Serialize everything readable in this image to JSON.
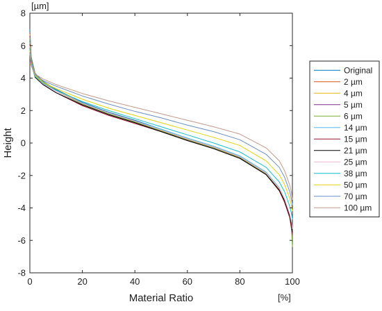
{
  "chart_data": {
    "type": "line",
    "title": "",
    "xlabel": "Material Ratio",
    "ylabel": "Height",
    "x_unit_label": "[%]",
    "y_unit_label": "[µm]",
    "xlim": [
      0,
      100
    ],
    "ylim": [
      -8,
      8
    ],
    "x_ticks": [
      0,
      20,
      40,
      60,
      80,
      100
    ],
    "y_ticks": [
      -8,
      -6,
      -4,
      -2,
      0,
      2,
      4,
      6,
      8
    ],
    "grid": false,
    "legend_position": "right",
    "x": [
      0,
      0.5,
      2,
      5,
      10,
      20,
      30,
      40,
      50,
      60,
      70,
      80,
      90,
      95,
      97,
      99,
      99.7,
      100
    ],
    "series": [
      {
        "name": "Original",
        "color": "#0072BD",
        "values": [
          7.0,
          5.3,
          4.3,
          3.8,
          3.3,
          2.5,
          1.9,
          1.4,
          0.85,
          0.3,
          -0.2,
          -0.8,
          -1.8,
          -2.8,
          -3.5,
          -4.5,
          -5.2,
          -6.0
        ]
      },
      {
        "name": "2 µm",
        "color": "#D95319",
        "values": [
          6.8,
          5.2,
          4.25,
          3.75,
          3.25,
          2.45,
          1.85,
          1.35,
          0.8,
          0.25,
          -0.25,
          -0.85,
          -1.85,
          -2.85,
          -3.55,
          -4.55,
          -5.3,
          -6.0
        ]
      },
      {
        "name": "4 µm",
        "color": "#EDB120",
        "values": [
          6.7,
          5.2,
          4.25,
          3.75,
          3.25,
          2.45,
          1.85,
          1.35,
          0.8,
          0.25,
          -0.25,
          -0.85,
          -1.85,
          -2.85,
          -3.55,
          -4.55,
          -5.25,
          -5.9
        ]
      },
      {
        "name": "5 µm",
        "color": "#7E2F8E",
        "values": [
          6.6,
          5.15,
          4.2,
          3.7,
          3.2,
          2.4,
          1.8,
          1.3,
          0.75,
          0.2,
          -0.3,
          -0.9,
          -1.9,
          -2.9,
          -3.6,
          -4.6,
          -5.3,
          -5.9
        ]
      },
      {
        "name": "6 µm",
        "color": "#77AC30",
        "values": [
          6.5,
          5.1,
          4.2,
          3.7,
          3.2,
          2.4,
          1.8,
          1.3,
          0.75,
          0.2,
          -0.3,
          -0.9,
          -1.9,
          -2.9,
          -3.6,
          -4.6,
          -5.4,
          -6.4
        ]
      },
      {
        "name": "14 µm",
        "color": "#4DBEEE",
        "values": [
          6.2,
          5.0,
          4.15,
          3.65,
          3.2,
          2.45,
          1.85,
          1.35,
          0.85,
          0.3,
          -0.2,
          -0.8,
          -1.8,
          -2.75,
          -3.45,
          -4.4,
          -5.0,
          -5.5
        ]
      },
      {
        "name": "15 µm",
        "color": "#A2142F",
        "values": [
          6.1,
          4.9,
          4.1,
          3.6,
          3.1,
          2.3,
          1.7,
          1.2,
          0.7,
          0.15,
          -0.35,
          -0.95,
          -1.95,
          -2.95,
          -3.65,
          -4.6,
          -5.3,
          -5.6
        ]
      },
      {
        "name": "21 µm",
        "color": "#000000",
        "values": [
          6.0,
          4.9,
          4.05,
          3.6,
          3.1,
          2.35,
          1.75,
          1.25,
          0.7,
          0.15,
          -0.35,
          -0.95,
          -1.95,
          -2.9,
          -3.55,
          -4.5,
          -5.1,
          -5.5
        ]
      },
      {
        "name": "25 µm",
        "color": "#F7B6D2",
        "values": [
          6.0,
          4.9,
          4.1,
          3.65,
          3.2,
          2.45,
          1.85,
          1.35,
          0.8,
          0.25,
          -0.25,
          -0.85,
          -1.85,
          -2.8,
          -3.45,
          -4.4,
          -4.9,
          -5.3
        ]
      },
      {
        "name": "38 µm",
        "color": "#17BECF",
        "values": [
          5.8,
          4.8,
          4.1,
          3.7,
          3.25,
          2.55,
          2.0,
          1.5,
          1.0,
          0.5,
          0.0,
          -0.55,
          -1.5,
          -2.4,
          -3.0,
          -3.9,
          -4.4,
          -4.7
        ]
      },
      {
        "name": "50 µm",
        "color": "#E6D30F",
        "values": [
          5.7,
          4.8,
          4.15,
          3.75,
          3.35,
          2.7,
          2.15,
          1.7,
          1.25,
          0.8,
          0.35,
          -0.15,
          -1.1,
          -1.95,
          -2.55,
          -3.4,
          -3.9,
          -4.2
        ]
      },
      {
        "name": "70 µm",
        "color": "#6A8FC9",
        "values": [
          5.6,
          4.8,
          4.2,
          3.85,
          3.5,
          2.9,
          2.4,
          1.95,
          1.55,
          1.1,
          0.7,
          0.2,
          -0.7,
          -1.5,
          -2.1,
          -3.0,
          -3.5,
          -3.8
        ]
      },
      {
        "name": "100 µm",
        "color": "#C49A8A",
        "values": [
          5.5,
          4.75,
          4.25,
          3.95,
          3.6,
          3.05,
          2.6,
          2.2,
          1.8,
          1.4,
          1.0,
          0.55,
          -0.3,
          -1.1,
          -1.7,
          -2.6,
          -3.1,
          -3.5
        ]
      }
    ]
  }
}
